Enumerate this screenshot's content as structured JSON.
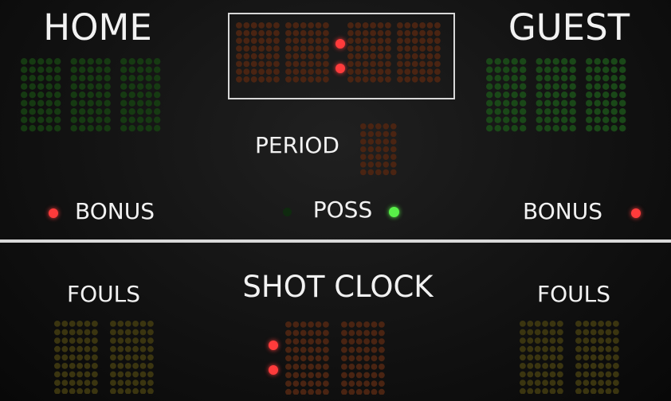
{
  "labels": {
    "home": "HOME",
    "guest": "GUEST",
    "period": "PERIOD",
    "bonus_left": "BONUS",
    "bonus_right": "BONUS",
    "poss": "POSS",
    "fouls_left": "FOULS",
    "fouls_right": "FOULS",
    "shot_clock": "SHOT CLOCK"
  },
  "colors": {
    "text": "#f2f2f2",
    "home_score_led": "#163a12",
    "guest_score_led": "#1a4818",
    "clock_led": "#4a2412",
    "period_led": "#4a2412",
    "fouls_led": "#3b3510",
    "shot_clock_led": "#4a2412",
    "red_indicator": "#ff3b3b",
    "green_indicator_on": "#58f048",
    "green_indicator_off": "#0f2a0f",
    "frame": "#d8d8d8"
  },
  "indicators": {
    "bonus_left_on": true,
    "bonus_right_on": true,
    "poss_left_on": false,
    "poss_right_on": true
  }
}
